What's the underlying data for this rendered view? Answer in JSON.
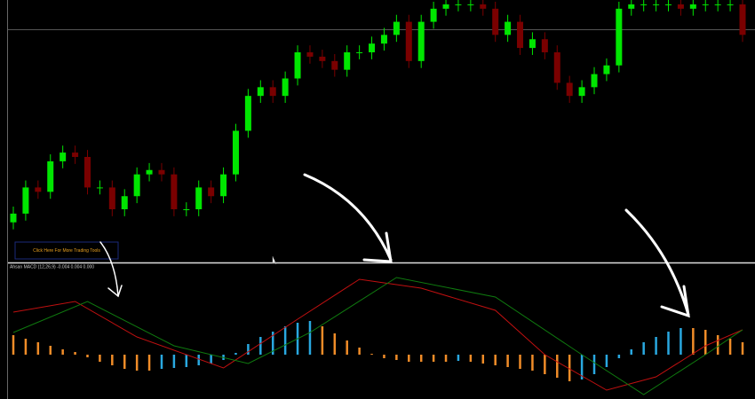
{
  "chart_data": {
    "type": "candlestick",
    "ylim": [
      0,
      300
    ],
    "up_color": "#00e600",
    "down_color": "#7a0000",
    "open": [
      45,
      55,
      85,
      80,
      115,
      125,
      120,
      85,
      85,
      60,
      75,
      100,
      105,
      100,
      60,
      60,
      85,
      75,
      100,
      150,
      190,
      200,
      190,
      210,
      240,
      235,
      230,
      220,
      240,
      240,
      250,
      260,
      275,
      230,
      275,
      290,
      295,
      295,
      295,
      290,
      260,
      275,
      245,
      255,
      240,
      205,
      190,
      200,
      215,
      225,
      290,
      295,
      295,
      295,
      295,
      290,
      295,
      295,
      295,
      295
    ],
    "high": [
      63,
      93,
      93,
      123,
      133,
      133,
      128,
      93,
      93,
      83,
      108,
      113,
      113,
      108,
      68,
      93,
      93,
      108,
      158,
      198,
      208,
      208,
      218,
      248,
      248,
      243,
      238,
      248,
      248,
      258,
      268,
      283,
      283,
      283,
      298,
      303,
      303,
      303,
      303,
      298,
      283,
      283,
      263,
      263,
      248,
      213,
      208,
      223,
      233,
      298,
      303,
      303,
      303,
      303,
      303,
      303,
      303,
      303,
      303,
      303
    ],
    "low": [
      37,
      47,
      72,
      72,
      107,
      112,
      77,
      77,
      52,
      52,
      67,
      92,
      92,
      52,
      52,
      52,
      67,
      67,
      92,
      142,
      182,
      182,
      182,
      202,
      227,
      222,
      212,
      212,
      232,
      232,
      242,
      252,
      222,
      222,
      267,
      282,
      287,
      287,
      282,
      252,
      252,
      237,
      237,
      232,
      197,
      182,
      182,
      192,
      207,
      217,
      282,
      287,
      287,
      287,
      282,
      282,
      287,
      287,
      287,
      252
    ],
    "close": [
      55,
      85,
      80,
      115,
      125,
      120,
      85,
      85,
      60,
      75,
      100,
      105,
      100,
      60,
      60,
      85,
      75,
      100,
      150,
      190,
      200,
      190,
      210,
      240,
      235,
      230,
      220,
      240,
      240,
      250,
      260,
      275,
      230,
      275,
      290,
      295,
      295,
      295,
      290,
      260,
      275,
      245,
      255,
      240,
      205,
      190,
      200,
      215,
      225,
      290,
      295,
      295,
      295,
      295,
      290,
      295,
      295,
      295,
      295,
      260
    ],
    "indicator": {
      "type": "macd",
      "label": "Ahsan MACD (12,26,9) -0.004 0.004 0.000",
      "ylim": [
        -50,
        103
      ],
      "up_color": "#29a8e0",
      "down_color": "#f08c28",
      "histogram": [
        22,
        18,
        14,
        10,
        6,
        3,
        -3,
        -8,
        -12,
        -16,
        -18,
        -18,
        -16,
        -15,
        -14,
        -12,
        -10,
        -6,
        2,
        12,
        20,
        26,
        32,
        36,
        38,
        32,
        24,
        16,
        8,
        1,
        -4,
        -6,
        -8,
        -8,
        -8,
        -8,
        -7,
        -8,
        -10,
        -12,
        -14,
        -16,
        -18,
        -22,
        -26,
        -30,
        -28,
        -22,
        -14,
        -4,
        6,
        14,
        20,
        26,
        30,
        30,
        28,
        22,
        18,
        14
      ],
      "lines": [
        {
          "color": "#c01010",
          "x": [
            0,
            5,
            10,
            17,
            23,
            28,
            33,
            39,
            43,
            48,
            52,
            56,
            59
          ],
          "values": [
            48,
            60,
            20,
            -15,
            40,
            85,
            75,
            50,
            0,
            -40,
            -25,
            10,
            28
          ]
        },
        {
          "color": "#0f7a0f",
          "x": [
            0,
            6,
            13,
            19,
            24,
            31,
            39,
            46,
            51,
            56,
            59
          ],
          "values": [
            25,
            60,
            10,
            -10,
            25,
            87,
            65,
            0,
            -45,
            0,
            28
          ]
        }
      ]
    }
  },
  "button": {
    "label": "Click Here For More Trading Tools"
  }
}
